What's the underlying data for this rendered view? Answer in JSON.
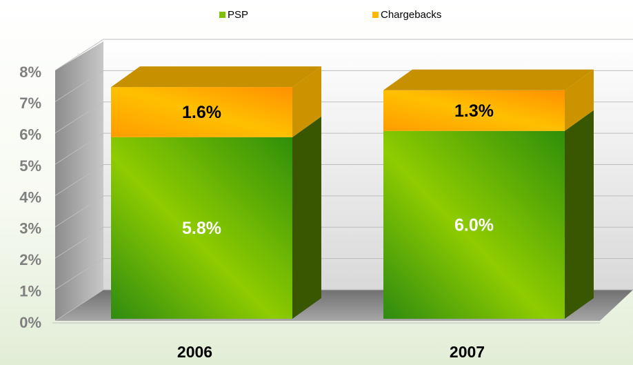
{
  "chart_data": {
    "type": "bar3d_stacked",
    "categories": [
      "2006",
      "2007"
    ],
    "series": [
      {
        "name": "PSP",
        "color": "#7fc000",
        "values": [
          5.8,
          6.0
        ],
        "value_labels": [
          "5.8%",
          "6.0%"
        ]
      },
      {
        "name": "Chargebacks",
        "color": "#ffb800",
        "values": [
          1.6,
          1.3
        ],
        "value_labels": [
          "1.6%",
          "1.3%"
        ]
      }
    ],
    "ylim": [
      0,
      8
    ],
    "yticks": [
      {
        "value": 0,
        "label": "0%"
      },
      {
        "value": 1,
        "label": "1%"
      },
      {
        "value": 2,
        "label": "2%"
      },
      {
        "value": 3,
        "label": "3%"
      },
      {
        "value": 4,
        "label": "4%"
      },
      {
        "value": 5,
        "label": "5%"
      },
      {
        "value": 6,
        "label": "6%"
      },
      {
        "value": 7,
        "label": "7%"
      },
      {
        "value": 8,
        "label": "8%"
      }
    ],
    "grid": true,
    "legend": "top"
  }
}
